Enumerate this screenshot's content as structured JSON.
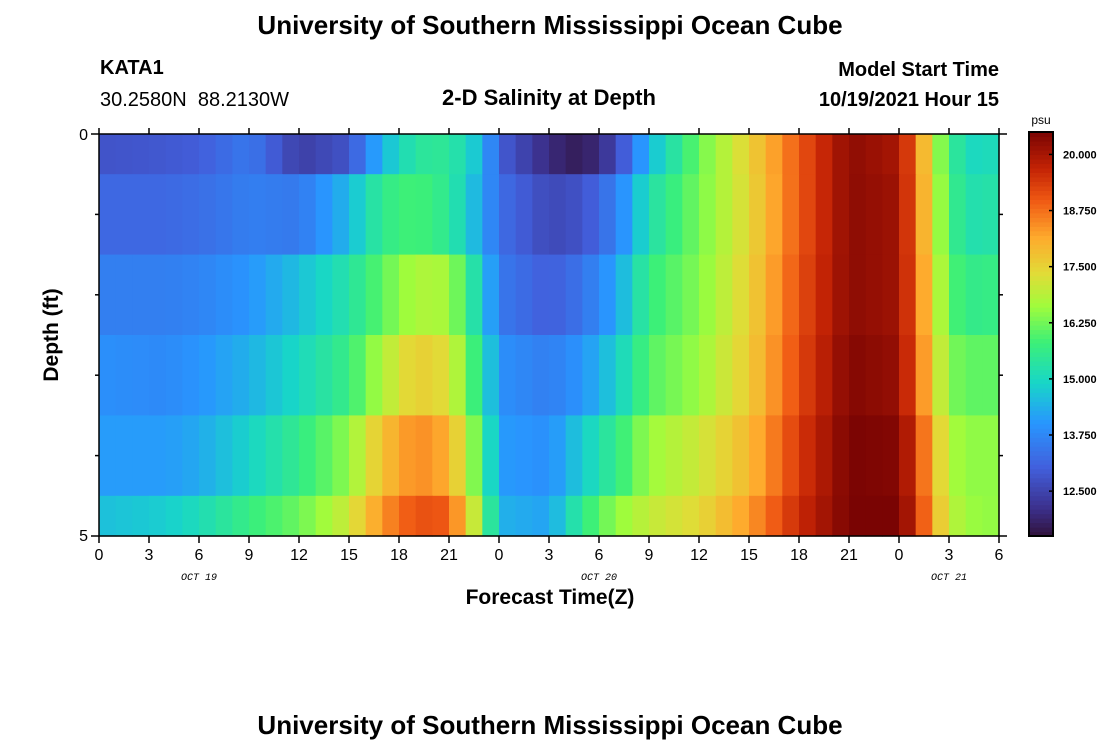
{
  "page": {
    "main_title": "University of Southern Mississippi Ocean Cube",
    "footer_title": "University of Southern Mississippi Ocean Cube"
  },
  "station": {
    "name": "KATA1",
    "coords": "30.2580N  88.2130W"
  },
  "model": {
    "label": "Model Start Time",
    "start": "10/19/2021 Hour 15"
  },
  "chart_data": {
    "type": "heatmap",
    "title": "2-D Salinity at Depth",
    "xlabel": "Forecast Time(Z)",
    "ylabel": "Depth (ft)",
    "x_tick_labels": [
      "0",
      "3",
      "6",
      "9",
      "12",
      "15",
      "18",
      "21",
      "0",
      "3",
      "6",
      "9",
      "12",
      "15",
      "18",
      "21",
      "0",
      "3",
      "6"
    ],
    "day_labels": [
      {
        "label": "OCT 19",
        "hour_index": 6
      },
      {
        "label": "OCT 20",
        "hour_index": 30
      },
      {
        "label": "OCT 21",
        "hour_index": 51
      }
    ],
    "x_range_hours": [
      0,
      54
    ],
    "y_range_ft": [
      0,
      5
    ],
    "y_tick_labels": [
      "0",
      "5"
    ],
    "colorbar": {
      "unit": "psu",
      "min": 11.5,
      "max": 20.5,
      "tick_values": [
        20.0,
        18.75,
        17.5,
        16.25,
        15.0,
        13.75,
        12.5
      ],
      "tick_labels": [
        "20.000",
        "18.750",
        "17.500",
        "16.250",
        "15.000",
        "13.750",
        "12.500"
      ]
    },
    "time_knots": [
      0,
      4,
      6,
      9,
      12,
      15,
      17,
      19,
      21,
      23,
      24,
      27,
      29,
      31,
      33,
      36,
      39,
      42,
      45,
      48,
      49,
      50,
      51,
      52,
      54
    ],
    "layers": [
      {
        "depth_ft": "0-0.5",
        "knots": [
          12.8,
          12.9,
          13.0,
          13.5,
          12.4,
          12.8,
          14.5,
          15.4,
          15.5,
          14.5,
          13.0,
          12.0,
          11.7,
          12.5,
          14.5,
          16.2,
          17.5,
          19.0,
          20.3,
          20.0,
          18.8,
          17.0,
          15.8,
          15.0,
          15.1
        ]
      },
      {
        "depth_ft": "0.5-1.5",
        "knots": [
          13.2,
          13.2,
          13.3,
          13.6,
          13.5,
          14.5,
          15.6,
          15.9,
          15.5,
          14.2,
          13.3,
          12.6,
          12.8,
          13.6,
          15.2,
          16.3,
          17.4,
          19.0,
          20.3,
          20.1,
          18.8,
          17.2,
          15.9,
          15.2,
          15.3
        ]
      },
      {
        "depth_ft": "1.5-2.5",
        "knots": [
          13.6,
          13.6,
          13.7,
          14.0,
          14.6,
          15.3,
          16.1,
          16.8,
          16.7,
          14.8,
          13.5,
          13.0,
          13.4,
          14.2,
          15.7,
          16.4,
          17.5,
          19.1,
          20.3,
          20.1,
          18.9,
          17.4,
          16.1,
          15.6,
          15.7
        ]
      },
      {
        "depth_ft": "2.5-3.5",
        "knots": [
          13.9,
          13.8,
          14.0,
          14.4,
          15.0,
          15.7,
          16.8,
          17.6,
          17.3,
          15.3,
          13.9,
          13.6,
          14.0,
          14.8,
          16.0,
          16.6,
          17.6,
          19.2,
          20.4,
          20.2,
          19.0,
          17.6,
          16.4,
          16.1,
          16.1
        ]
      },
      {
        "depth_ft": "3.5-4.5",
        "knots": [
          14.1,
          14.1,
          14.3,
          14.9,
          15.6,
          16.5,
          17.8,
          18.5,
          18.1,
          15.8,
          14.1,
          13.9,
          14.8,
          15.6,
          16.6,
          17.1,
          17.9,
          19.4,
          20.5,
          20.4,
          19.4,
          18.0,
          16.8,
          16.5,
          16.5
        ]
      },
      {
        "depth_ft": "4.5-5",
        "knots": [
          14.6,
          14.8,
          15.1,
          15.7,
          16.2,
          17.1,
          18.4,
          19.1,
          19.0,
          16.4,
          14.4,
          14.2,
          15.6,
          16.5,
          17.0,
          17.4,
          18.3,
          19.6,
          20.5,
          20.5,
          19.6,
          18.2,
          17.0,
          16.6,
          16.5
        ]
      }
    ]
  }
}
